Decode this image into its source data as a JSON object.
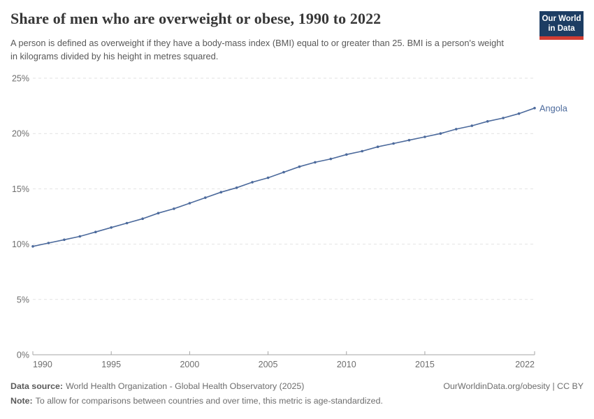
{
  "header": {
    "title": "Share of men who are overweight or obese, 1990 to 2022",
    "subtitle": "A person is defined as overweight if they have a body-mass index (BMI) equal to or greater than 25. BMI is a person's weight in kilograms divided by his height in metres squared.",
    "logo": {
      "line1": "Our World",
      "line2": "in Data"
    }
  },
  "footer": {
    "source_label": "Data source:",
    "source_text": "World Health Organization - Global Health Observatory (2025)",
    "link_text": "OurWorldinData.org/obesity | CC BY",
    "note_label": "Note:",
    "note_text": "To allow for comparisons between countries and over time, this metric is age-standardized."
  },
  "colors": {
    "line": "#4c6a9c",
    "entity_label": "#4c6a9c",
    "grid": "#e2e2e2",
    "axis": "#a5a5a5",
    "tick_label": "#6e6e6e",
    "logo_bg": "#1d3d63",
    "logo_accent": "#d13d33"
  },
  "chart_data": {
    "type": "line",
    "title": "Share of men who are overweight or obese, 1990 to 2022",
    "xlabel": "",
    "ylabel": "",
    "x": [
      1990,
      1991,
      1992,
      1993,
      1994,
      1995,
      1996,
      1997,
      1998,
      1999,
      2000,
      2001,
      2002,
      2003,
      2004,
      2005,
      2006,
      2007,
      2008,
      2009,
      2010,
      2011,
      2012,
      2013,
      2014,
      2015,
      2016,
      2017,
      2018,
      2019,
      2020,
      2021,
      2022
    ],
    "series": [
      {
        "name": "Angola",
        "values": [
          9.8,
          10.1,
          10.4,
          10.7,
          11.1,
          11.5,
          11.9,
          12.3,
          12.8,
          13.2,
          13.7,
          14.2,
          14.7,
          15.1,
          15.6,
          16.0,
          16.5,
          17.0,
          17.4,
          17.7,
          18.1,
          18.4,
          18.8,
          19.1,
          19.4,
          19.7,
          20.0,
          20.4,
          20.7,
          21.1,
          21.4,
          21.8,
          22.3
        ]
      }
    ],
    "xticks": [
      1990,
      1995,
      2000,
      2005,
      2010,
      2015,
      2022
    ],
    "yticks": [
      0,
      5,
      10,
      15,
      20,
      25
    ],
    "ytick_suffix": "%",
    "xlim": [
      1990,
      2022
    ],
    "ylim": [
      0,
      25
    ],
    "grid": "horizontal-dashed",
    "legend": "line-end-label"
  }
}
